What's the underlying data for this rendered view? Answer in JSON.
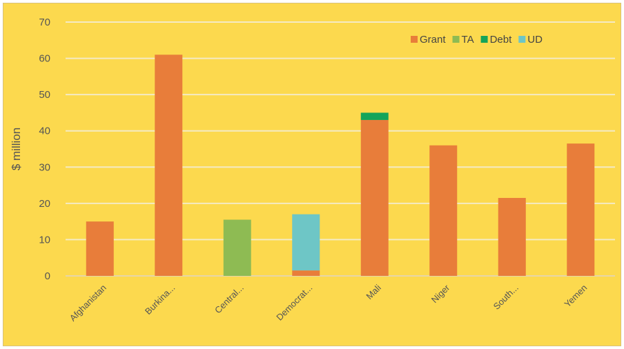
{
  "chart_data": {
    "type": "bar",
    "stacked": true,
    "title": "",
    "xlabel": "",
    "ylabel": "$ million",
    "ylim": [
      0,
      70
    ],
    "yticks": [
      0,
      10,
      20,
      30,
      40,
      50,
      60,
      70
    ],
    "grid": true,
    "legend_position": "top-right",
    "background_color": "#FCD94E",
    "categories": [
      "Afghanistan",
      "Burkina...",
      "Central...",
      "Democrat...",
      "Mali",
      "Niger",
      "South...",
      "Yemen"
    ],
    "series": [
      {
        "name": "Grant",
        "color": "#E87D3A",
        "values": [
          15,
          61,
          0,
          1.5,
          43,
          36,
          21.5,
          36.5
        ]
      },
      {
        "name": "TA",
        "color": "#8EBB53",
        "values": [
          0,
          0,
          15.5,
          0,
          0,
          0,
          0,
          0
        ]
      },
      {
        "name": "Debt",
        "color": "#14A45A",
        "values": [
          0,
          0,
          0,
          0,
          2,
          0,
          0,
          0
        ]
      },
      {
        "name": "UD",
        "color": "#6EC6C6",
        "values": [
          0,
          0,
          0,
          15.5,
          0,
          0,
          0,
          0
        ]
      }
    ]
  }
}
